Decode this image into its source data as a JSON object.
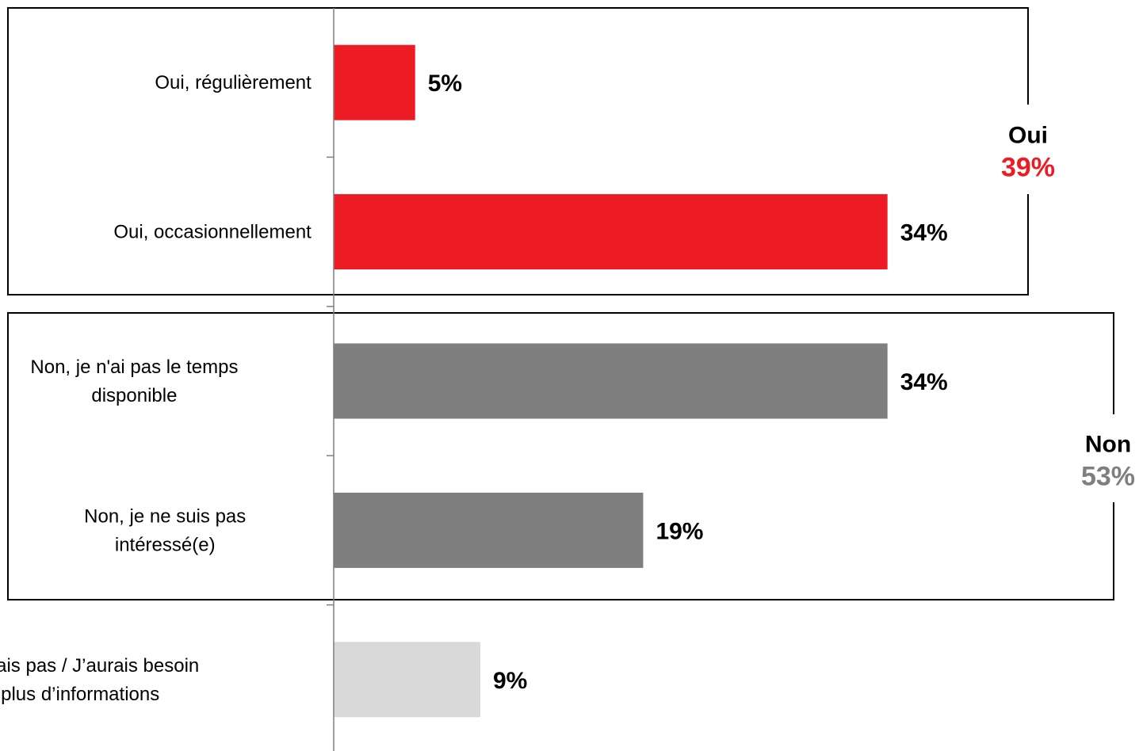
{
  "chart_data": {
    "type": "bar",
    "orientation": "horizontal",
    "categories": [
      [
        "Oui, régulièrement"
      ],
      [
        "Oui, occasionnellement"
      ],
      [
        "Non, je n'ai pas le temps",
        "disponible"
      ],
      [
        "Non, je ne suis pas",
        "intéressé(e)"
      ],
      [
        "Je ne sais pas / J’aurais besoin",
        "de plus d’informations"
      ]
    ],
    "values": [
      5,
      34,
      34,
      19,
      9
    ],
    "value_labels": [
      "5%",
      "34%",
      "34%",
      "19%",
      "9%"
    ],
    "bar_colors": [
      "#ed1c24",
      "#ed1c24",
      "#7f7f7f",
      "#7f7f7f",
      "#d9d9d9"
    ],
    "unit": "%",
    "groups": [
      {
        "name": "Oui",
        "total": "39%",
        "color": "#ed1c24",
        "members": [
          0,
          1
        ]
      },
      {
        "name": "Non",
        "total": "53%",
        "color": "#7f7f7f",
        "members": [
          2,
          3
        ]
      }
    ],
    "title": "",
    "xlabel": "",
    "ylabel": "",
    "grid": false,
    "legend": "none"
  }
}
